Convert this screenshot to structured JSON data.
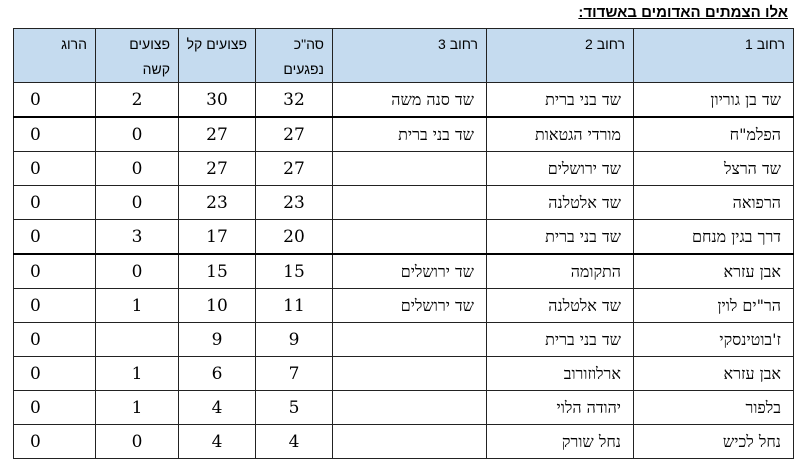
{
  "title": "אלו הצמתים האדומים באשדוד:",
  "headers": {
    "street1": "רחוב 1",
    "street2": "רחוב 2",
    "street3": "רחוב 3",
    "total_injured": "סה\"כ נפגעים",
    "light_injured": "פצועים קל",
    "severe_injured": "פצועים קשה",
    "killed": "הרוג"
  },
  "rows": [
    {
      "street1": "שד בן גוריון",
      "street2": "שד בני ברית",
      "street3": "שד סנה משה",
      "total": "32",
      "light": "30",
      "severe": "2",
      "killed": "0"
    },
    {
      "street1": "הפלמ\"ח",
      "street2": "מורדי הגטאות",
      "street3": "שד בני ברית",
      "total": "27",
      "light": "27",
      "severe": "0",
      "killed": "0"
    },
    {
      "street1": "שד הרצל",
      "street2": "שד ירושלים",
      "street3": "",
      "total": "27",
      "light": "27",
      "severe": "0",
      "killed": "0"
    },
    {
      "street1": "הרפואה",
      "street2": "שד אלטלנה",
      "street3": "",
      "total": "23",
      "light": "23",
      "severe": "0",
      "killed": "0"
    },
    {
      "street1": "דרך בגין מנחם",
      "street2": "שד בני ברית",
      "street3": "",
      "total": "20",
      "light": "17",
      "severe": "3",
      "killed": "0"
    },
    {
      "street1": "אבן עזרא",
      "street2": "התקומה",
      "street3": "שד ירושלים",
      "total": "15",
      "light": "15",
      "severe": "0",
      "killed": "0"
    },
    {
      "street1": "הר\"ים לוין",
      "street2": "שד אלטלנה",
      "street3": "שד ירושלים",
      "total": "11",
      "light": "10",
      "severe": "1",
      "killed": "0"
    },
    {
      "street1": "ז'בוטינסקי",
      "street2": "שד בני ברית",
      "street3": "",
      "total": "9",
      "light": "9",
      "severe": "",
      "killed": "0"
    },
    {
      "street1": "אבן עזרא",
      "street2": "ארלוזורוב",
      "street3": "",
      "total": "7",
      "light": "6",
      "severe": "1",
      "killed": "0"
    },
    {
      "street1": "בלפור",
      "street2": "יהודה הלוי",
      "street3": "",
      "total": "5",
      "light": "4",
      "severe": "1",
      "killed": "0"
    },
    {
      "street1": "נחל לכיש",
      "street2": "נחל שורק",
      "street3": "",
      "total": "4",
      "light": "4",
      "severe": "0",
      "killed": "0"
    }
  ]
}
